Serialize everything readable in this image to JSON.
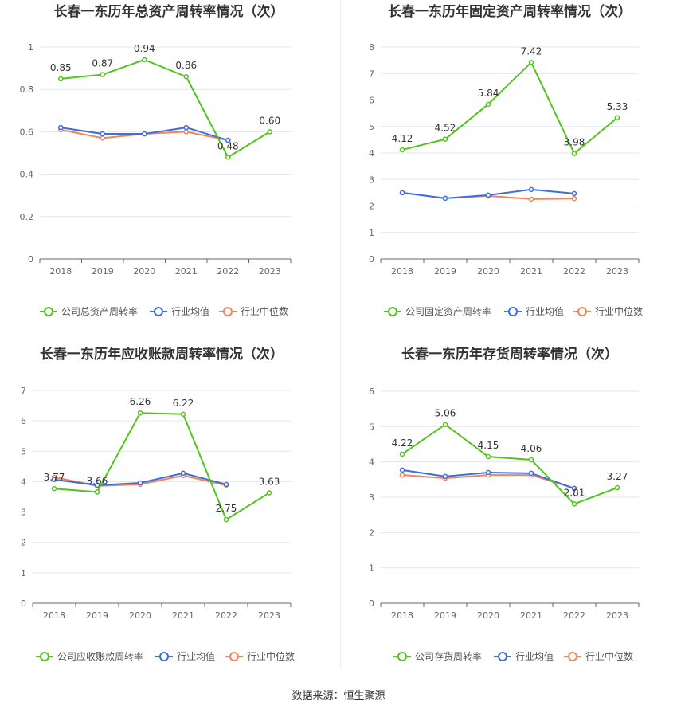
{
  "source": "数据来源：恒生聚源",
  "colors": {
    "company": "#52c41a",
    "avg": "#3a6fe0",
    "median": "#f5845a",
    "grid": "#e0e6f1",
    "axis": "#666666"
  },
  "chart_data": [
    {
      "type": "line",
      "title": "长春一东历年总资产周转率情况（次）",
      "categories": [
        "2018",
        "2019",
        "2020",
        "2021",
        "2022",
        "2023"
      ],
      "ylim": [
        0,
        1
      ],
      "yticks": [
        "0",
        "0.2",
        "0.4",
        "0.6",
        "0.8",
        "1"
      ],
      "series": [
        {
          "name": "公司总资产周转率",
          "values": [
            0.85,
            0.87,
            0.94,
            0.86,
            0.48,
            0.6
          ],
          "labels": [
            "0.85",
            "0.87",
            "0.94",
            "0.86",
            "0.48",
            "0.60"
          ]
        },
        {
          "name": "行业均值",
          "values": [
            0.62,
            0.59,
            0.59,
            0.62,
            0.56,
            null
          ]
        },
        {
          "name": "行业中位数",
          "values": [
            0.61,
            0.57,
            0.59,
            0.6,
            0.56,
            null
          ]
        }
      ]
    },
    {
      "type": "line",
      "title": "长春一东历年固定资产周转率情况（次）",
      "categories": [
        "2018",
        "2019",
        "2020",
        "2021",
        "2022",
        "2023"
      ],
      "ylim": [
        0,
        8
      ],
      "yticks": [
        "0",
        "1",
        "2",
        "3",
        "4",
        "5",
        "6",
        "7",
        "8"
      ],
      "series": [
        {
          "name": "公司固定资产周转率",
          "values": [
            4.12,
            4.52,
            5.84,
            7.42,
            3.98,
            5.33
          ],
          "labels": [
            "4.12",
            "4.52",
            "5.84",
            "7.42",
            "3.98",
            "5.33"
          ]
        },
        {
          "name": "行业均值",
          "values": [
            2.5,
            2.29,
            2.41,
            2.62,
            2.47,
            null
          ]
        },
        {
          "name": "行业中位数",
          "values": [
            2.5,
            2.29,
            2.38,
            2.26,
            2.28,
            null
          ]
        }
      ]
    },
    {
      "type": "line",
      "title": "长春一东历年应收账款周转率情况（次）",
      "categories": [
        "2018",
        "2019",
        "2020",
        "2021",
        "2022",
        "2023"
      ],
      "ylim": [
        0,
        7
      ],
      "yticks": [
        "0",
        "1",
        "2",
        "3",
        "4",
        "5",
        "6",
        "7"
      ],
      "series": [
        {
          "name": "公司应收账款周转率",
          "values": [
            3.77,
            3.66,
            6.26,
            6.22,
            2.75,
            3.63
          ],
          "labels": [
            "3.77",
            "3.66",
            "6.26",
            "6.22",
            "2.75",
            "3.63"
          ]
        },
        {
          "name": "行业均值",
          "values": [
            4.07,
            3.88,
            3.96,
            4.28,
            3.91,
            null
          ]
        },
        {
          "name": "行业中位数",
          "values": [
            4.15,
            3.86,
            3.91,
            4.2,
            3.88,
            null
          ]
        }
      ]
    },
    {
      "type": "line",
      "title": "长春一东历年存货周转率情况（次）",
      "categories": [
        "2018",
        "2019",
        "2020",
        "2021",
        "2022",
        "2023"
      ],
      "ylim": [
        0,
        6
      ],
      "yticks": [
        "0",
        "1",
        "2",
        "3",
        "4",
        "5",
        "6"
      ],
      "series": [
        {
          "name": "公司存货周转率",
          "values": [
            4.22,
            5.06,
            4.15,
            4.06,
            2.81,
            3.27
          ],
          "labels": [
            "4.22",
            "5.06",
            "4.15",
            "4.06",
            "2.81",
            "3.27"
          ]
        },
        {
          "name": "行业均值",
          "values": [
            3.77,
            3.59,
            3.7,
            3.68,
            3.25,
            null
          ]
        },
        {
          "name": "行业中位数",
          "values": [
            3.63,
            3.54,
            3.63,
            3.63,
            3.25,
            null
          ]
        }
      ]
    }
  ]
}
